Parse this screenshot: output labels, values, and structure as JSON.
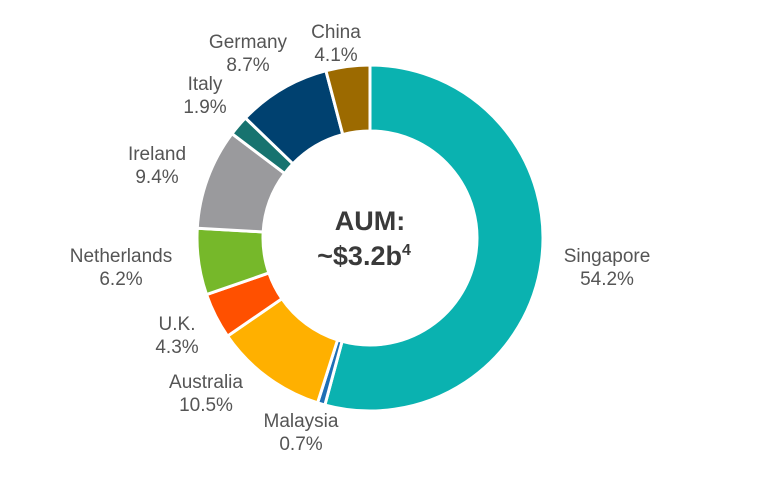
{
  "chart_data": {
    "type": "pie",
    "subtype": "donut",
    "center_label": {
      "line1": "AUM:",
      "line2": "~$3.2b",
      "superscript": "4"
    },
    "slices": [
      {
        "label": "Singapore",
        "value": 54.2,
        "value_text": "54.2%",
        "color": "#0AB2B0"
      },
      {
        "label": "Malaysia",
        "value": 0.7,
        "value_text": "0.7%",
        "color": "#1E6FB5"
      },
      {
        "label": "Australia",
        "value": 10.5,
        "value_text": "10.5%",
        "color": "#FFB000"
      },
      {
        "label": "U.K.",
        "value": 4.3,
        "value_text": "4.3%",
        "color": "#FF5000"
      },
      {
        "label": "Netherlands",
        "value": 6.2,
        "value_text": "6.2%",
        "color": "#76B82A"
      },
      {
        "label": "Ireland",
        "value": 9.4,
        "value_text": "9.4%",
        "color": "#9A9A9D"
      },
      {
        "label": "Italy",
        "value": 1.9,
        "value_text": "1.9%",
        "color": "#17736F"
      },
      {
        "label": "Germany",
        "value": 8.7,
        "value_text": "8.7%",
        "color": "#004170"
      },
      {
        "label": "China",
        "value": 4.1,
        "value_text": "4.1%",
        "color": "#9C6A00"
      }
    ]
  }
}
